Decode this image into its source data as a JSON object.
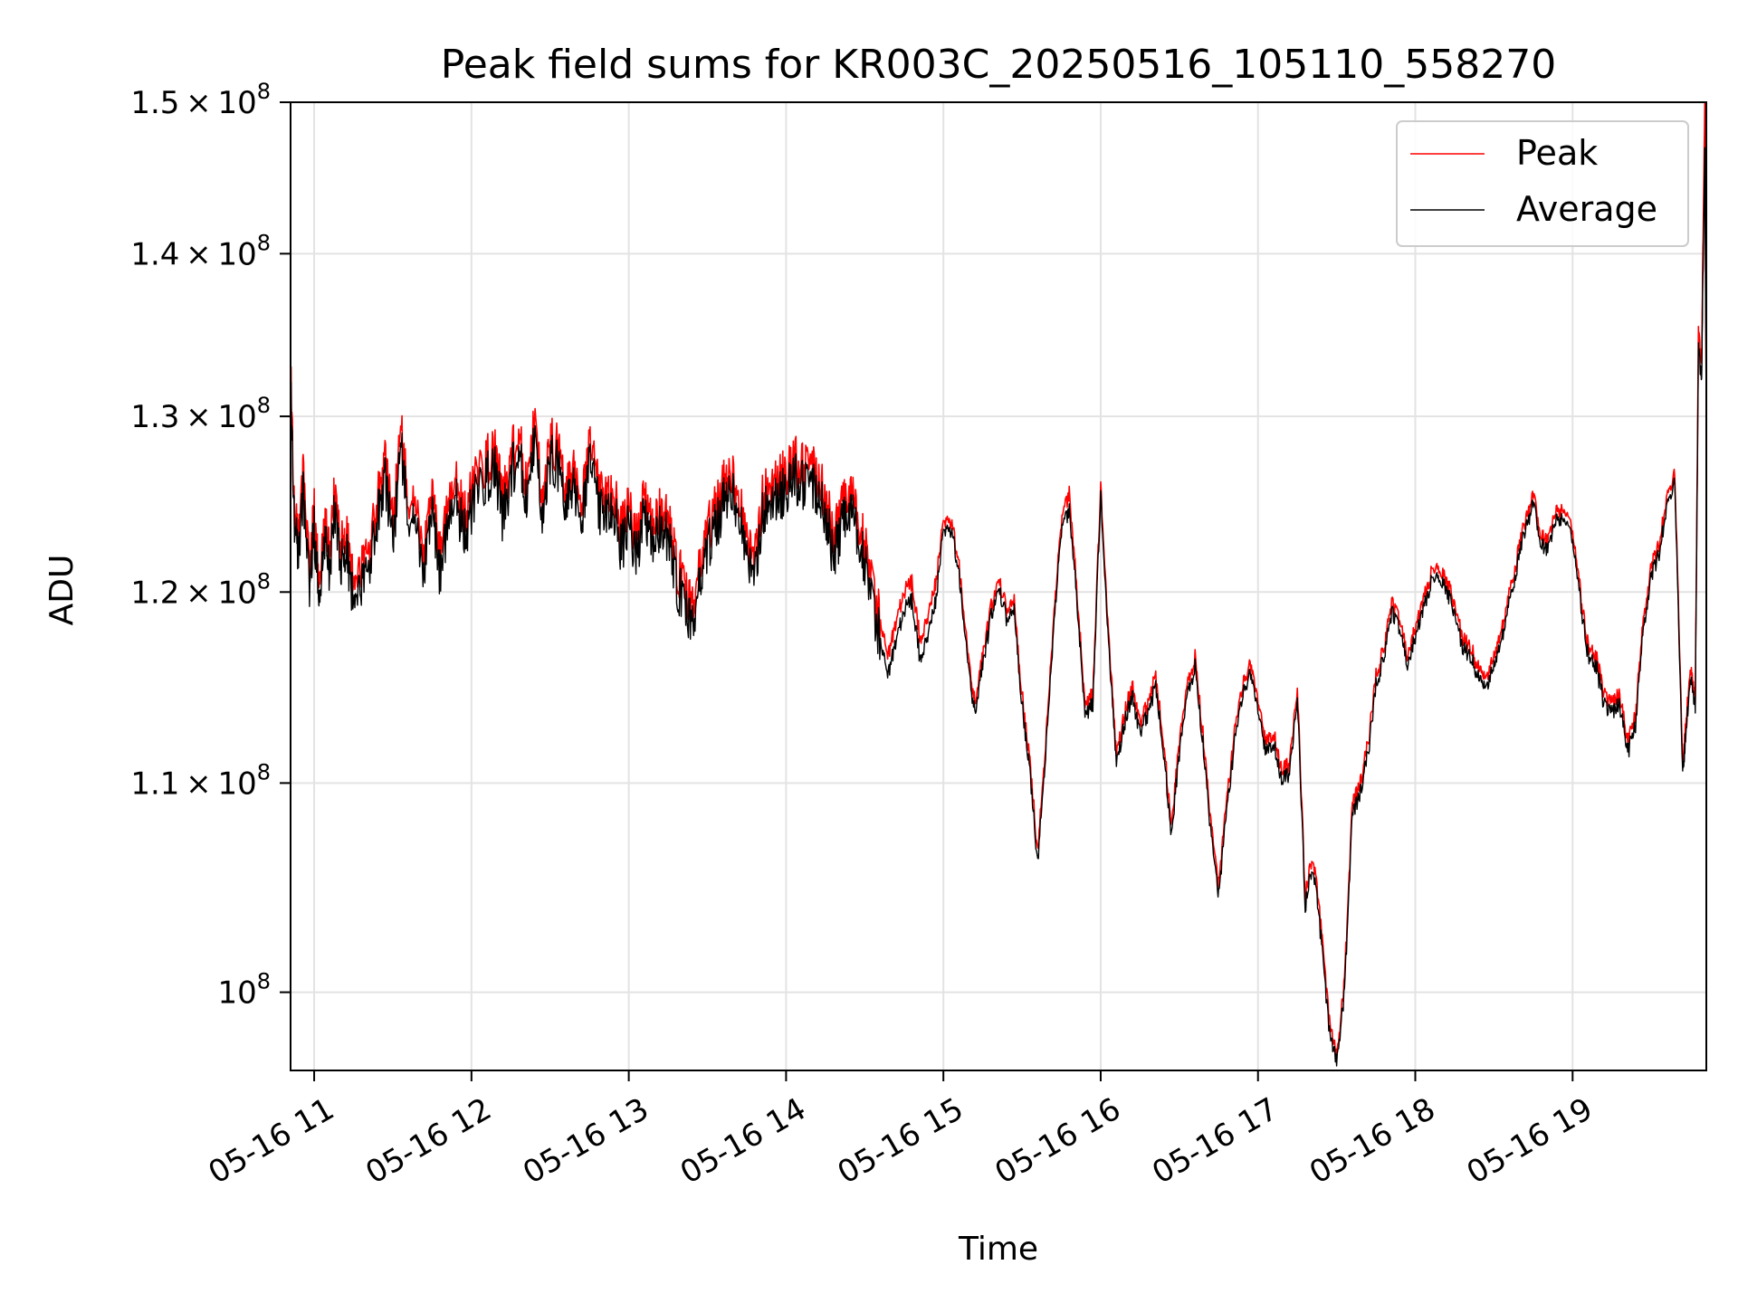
{
  "chart_data": {
    "type": "line",
    "title": "Peak field sums for KR003C_20250516_105110_558270",
    "xlabel": "Time",
    "ylabel": "ADU",
    "x_unit": "hours",
    "xlim": [
      10.85,
      19.85
    ],
    "ylim": [
      96500000,
      150000000
    ],
    "yscale": "log",
    "grid": true,
    "legend_position": "upper right",
    "x_ticks": [
      {
        "value": 11,
        "label": "05-16 11"
      },
      {
        "value": 12,
        "label": "05-16 12"
      },
      {
        "value": 13,
        "label": "05-16 13"
      },
      {
        "value": 14,
        "label": "05-16 14"
      },
      {
        "value": 15,
        "label": "05-16 15"
      },
      {
        "value": 16,
        "label": "05-16 16"
      },
      {
        "value": 17,
        "label": "05-16 17"
      },
      {
        "value": 18,
        "label": "05-16 18"
      },
      {
        "value": 19,
        "label": "05-16 19"
      }
    ],
    "y_ticks": [
      {
        "value": 100000000,
        "base": "10",
        "exp": "8"
      },
      {
        "value": 110000000,
        "base": "1.1 × 10",
        "exp": "8"
      },
      {
        "value": 120000000,
        "base": "1.2 × 10",
        "exp": "8"
      },
      {
        "value": 130000000,
        "base": "1.3 × 10",
        "exp": "8"
      },
      {
        "value": 140000000,
        "base": "1.4 × 10",
        "exp": "8"
      },
      {
        "value": 150000000,
        "base": "1.5 × 10",
        "exp": "8"
      }
    ],
    "x": [
      10.85,
      10.87,
      10.9,
      10.93,
      10.97,
      11.0,
      11.03,
      11.07,
      11.1,
      11.13,
      11.17,
      11.2,
      11.25,
      11.3,
      11.35,
      11.4,
      11.45,
      11.5,
      11.55,
      11.6,
      11.65,
      11.7,
      11.75,
      11.8,
      11.85,
      11.9,
      11.95,
      12.0,
      12.05,
      12.1,
      12.15,
      12.2,
      12.25,
      12.3,
      12.35,
      12.4,
      12.45,
      12.5,
      12.55,
      12.6,
      12.65,
      12.7,
      12.75,
      12.8,
      12.85,
      12.9,
      12.95,
      13.0,
      13.05,
      13.1,
      13.15,
      13.2,
      13.25,
      13.3,
      13.35,
      13.4,
      13.45,
      13.5,
      13.55,
      13.6,
      13.65,
      13.7,
      13.75,
      13.8,
      13.85,
      13.9,
      13.95,
      14.0,
      14.05,
      14.1,
      14.15,
      14.2,
      14.25,
      14.3,
      14.35,
      14.4,
      14.45,
      14.5,
      14.55,
      14.6,
      14.65,
      14.7,
      14.75,
      14.8,
      14.85,
      14.9,
      14.95,
      15.0,
      15.05,
      15.1,
      15.15,
      15.2,
      15.25,
      15.3,
      15.35,
      15.4,
      15.45,
      15.5,
      15.55,
      15.6,
      15.65,
      15.7,
      15.75,
      15.8,
      15.85,
      15.9,
      15.95,
      16.0,
      16.05,
      16.1,
      16.15,
      16.2,
      16.25,
      16.3,
      16.35,
      16.4,
      16.45,
      16.5,
      16.55,
      16.6,
      16.65,
      16.7,
      16.75,
      16.8,
      16.85,
      16.9,
      16.95,
      17.0,
      17.05,
      17.1,
      17.15,
      17.2,
      17.25,
      17.3,
      17.35,
      17.4,
      17.45,
      17.5,
      17.55,
      17.6,
      17.65,
      17.7,
      17.75,
      17.8,
      17.85,
      17.9,
      17.95,
      18.0,
      18.05,
      18.1,
      18.15,
      18.2,
      18.25,
      18.3,
      18.35,
      18.4,
      18.45,
      18.5,
      18.55,
      18.6,
      18.65,
      18.7,
      18.75,
      18.8,
      18.85,
      18.9,
      18.95,
      19.0,
      19.05,
      19.1,
      19.15,
      19.2,
      19.25,
      19.3,
      19.35,
      19.4,
      19.45,
      19.5,
      19.55,
      19.6,
      19.65,
      19.7,
      19.72,
      19.75,
      19.78,
      19.8,
      19.82,
      19.84,
      19.85
    ],
    "series": [
      {
        "name": "Peak",
        "color": "#ff0000",
        "values": [
          134000000,
          125000000,
          122500000,
          126500000,
          121500000,
          124500000,
          120500000,
          124500000,
          122000000,
          126000000,
          122500000,
          123500000,
          120500000,
          121500000,
          122500000,
          125000000,
          127500000,
          123500000,
          129500000,
          125500000,
          124000000,
          122500000,
          125000000,
          122000000,
          125000000,
          126500000,
          124000000,
          125500000,
          127000000,
          127500000,
          128000000,
          125000000,
          127500000,
          129000000,
          126000000,
          129500000,
          125500000,
          128500000,
          128000000,
          126000000,
          126500000,
          124500000,
          128500000,
          126000000,
          125000000,
          126000000,
          123500000,
          124500000,
          123000000,
          125500000,
          124000000,
          124500000,
          124000000,
          121500000,
          120500000,
          119500000,
          121000000,
          123500000,
          124500000,
          126000000,
          127000000,
          125000000,
          123000000,
          122000000,
          125500000,
          126000000,
          126500000,
          126500000,
          127500000,
          127000000,
          127000000,
          126500000,
          125500000,
          123000000,
          124500000,
          125500000,
          124500000,
          122500000,
          120000000,
          118500000,
          116500000,
          118500000,
          120000000,
          120500000,
          117500000,
          118500000,
          120500000,
          124000000,
          124000000,
          121500000,
          117000000,
          114000000,
          116500000,
          119000000,
          121000000,
          119000000,
          119500000,
          114500000,
          111000000,
          106500000,
          112000000,
          118500000,
          124000000,
          125500000,
          120000000,
          114000000,
          114500000,
          126000000,
          117500000,
          111500000,
          113500000,
          115000000,
          113000000,
          114000000,
          115500000,
          112000000,
          108000000,
          112000000,
          115000000,
          116500000,
          112500000,
          108000000,
          105000000,
          109000000,
          112500000,
          115000000,
          116000000,
          114000000,
          112000000,
          112500000,
          110500000,
          111000000,
          115000000,
          104500000,
          106500000,
          103000000,
          99000000,
          97000000,
          100500000,
          109000000,
          110000000,
          112000000,
          115500000,
          117000000,
          119500000,
          118500000,
          116500000,
          118000000,
          119500000,
          121000000,
          121500000,
          120500000,
          119500000,
          117500000,
          117000000,
          116000000,
          115500000,
          116500000,
          118000000,
          120000000,
          122000000,
          124000000,
          125500000,
          123000000,
          123000000,
          124500000,
          124500000,
          123500000,
          120000000,
          117000000,
          116500000,
          114500000,
          114000000,
          114500000,
          112000000,
          113500000,
          118500000,
          121500000,
          122500000,
          125500000,
          126500000,
          111000000,
          113000000,
          116000000,
          114500000,
          135000000,
          133000000,
          150000000,
          130000000
        ]
      },
      {
        "name": "Average",
        "color": "#000000",
        "values": [
          133000000,
          124500000,
          121500000,
          125500000,
          120500000,
          123500000,
          119500000,
          123500000,
          121000000,
          125000000,
          121500000,
          122500000,
          119500000,
          120500000,
          121500000,
          124000000,
          126500000,
          122500000,
          128500000,
          124500000,
          123000000,
          121500000,
          124000000,
          121000000,
          124000000,
          125500000,
          123000000,
          124500000,
          126000000,
          126500000,
          127000000,
          124000000,
          126500000,
          128000000,
          125000000,
          128500000,
          124500000,
          127500000,
          127000000,
          125000000,
          125500000,
          123500000,
          127500000,
          125000000,
          124000000,
          125000000,
          122500000,
          123500000,
          122000000,
          124500000,
          123000000,
          123500000,
          123000000,
          120500000,
          119500000,
          118500000,
          120000000,
          122500000,
          123500000,
          125000000,
          126000000,
          124000000,
          122000000,
          121000000,
          124500000,
          125000000,
          125500000,
          125500000,
          126500000,
          126000000,
          126000000,
          125500000,
          124500000,
          122000000,
          123500000,
          124500000,
          123500000,
          121500000,
          119000000,
          117500000,
          115500000,
          117500000,
          119000000,
          119500000,
          116500000,
          117500000,
          119500000,
          123500000,
          123500000,
          121000000,
          116500000,
          113500000,
          116000000,
          118500000,
          120500000,
          118500000,
          119000000,
          114000000,
          110500000,
          106000000,
          111500000,
          118000000,
          123500000,
          124500000,
          119500000,
          113500000,
          114000000,
          125500000,
          117000000,
          111000000,
          113000000,
          114500000,
          112500000,
          113500000,
          115000000,
          111500000,
          107500000,
          111500000,
          114500000,
          116000000,
          112000000,
          107500000,
          104500000,
          108500000,
          112000000,
          114500000,
          115500000,
          113500000,
          111500000,
          112000000,
          110000000,
          110500000,
          114500000,
          104000000,
          106000000,
          102500000,
          98500000,
          96800000,
          100000000,
          108500000,
          109500000,
          111500000,
          115000000,
          116500000,
          119000000,
          118000000,
          116000000,
          117500000,
          119000000,
          120500000,
          121000000,
          120000000,
          119000000,
          117000000,
          116500000,
          115500000,
          115000000,
          116000000,
          117500000,
          119500000,
          121500000,
          123500000,
          125000000,
          122500000,
          122500000,
          124000000,
          124000000,
          123000000,
          119500000,
          116500000,
          116000000,
          114000000,
          113500000,
          114000000,
          111500000,
          113000000,
          118000000,
          121000000,
          122000000,
          125000000,
          126000000,
          110500000,
          112500000,
          115500000,
          114000000,
          134000000,
          132000000,
          147000000,
          129500000
        ]
      }
    ]
  }
}
